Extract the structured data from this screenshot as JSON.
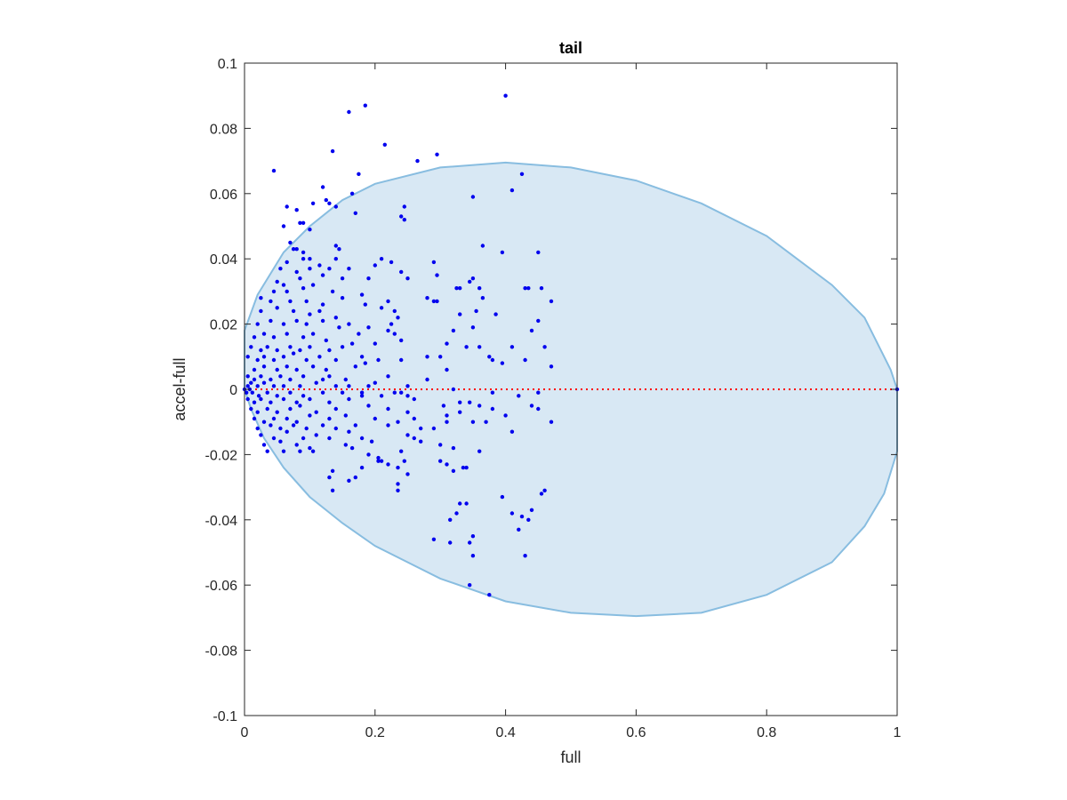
{
  "chart_data": {
    "type": "scatter",
    "title": "tail",
    "xlabel": "full",
    "ylabel": "accel-full",
    "xlim": [
      0,
      1
    ],
    "ylim": [
      -0.1,
      0.1
    ],
    "xticks": [
      0,
      0.2,
      0.4,
      0.6,
      0.8,
      1
    ],
    "xtick_labels": [
      "0",
      "0.2",
      "0.4",
      "0.6",
      "0.8",
      "1"
    ],
    "yticks": [
      -0.1,
      -0.08,
      -0.06,
      -0.04,
      -0.02,
      0,
      0.02,
      0.04,
      0.06,
      0.08,
      0.1
    ],
    "ytick_labels": [
      "-0.1",
      "-0.08",
      "-0.06",
      "-0.04",
      "-0.02",
      "0",
      "0.02",
      "0.04",
      "0.06",
      "0.08",
      "0.1"
    ],
    "grid": false,
    "colors": {
      "points": "#0000ee",
      "region_fill": "#d8e8f4",
      "region_edge": "#88bde0",
      "zero_line": "#ff0000",
      "axes": "#262626"
    },
    "region": {
      "shape": "ellipse",
      "top_path": [
        [
          0,
          0.018
        ],
        [
          0.02,
          0.029
        ],
        [
          0.06,
          0.042
        ],
        [
          0.1,
          0.05
        ],
        [
          0.15,
          0.058
        ],
        [
          0.2,
          0.063
        ],
        [
          0.3,
          0.068
        ],
        [
          0.4,
          0.0695
        ],
        [
          0.5,
          0.068
        ],
        [
          0.6,
          0.064
        ],
        [
          0.7,
          0.057
        ],
        [
          0.8,
          0.047
        ],
        [
          0.9,
          0.032
        ],
        [
          0.95,
          0.022
        ],
        [
          0.99,
          0.006
        ],
        [
          1.0,
          0.0
        ]
      ],
      "bottom_path": [
        [
          1.0,
          -0.019
        ],
        [
          0.98,
          -0.032
        ],
        [
          0.95,
          -0.042
        ],
        [
          0.9,
          -0.053
        ],
        [
          0.8,
          -0.063
        ],
        [
          0.7,
          -0.0685
        ],
        [
          0.6,
          -0.0695
        ],
        [
          0.5,
          -0.0685
        ],
        [
          0.4,
          -0.065
        ],
        [
          0.3,
          -0.058
        ],
        [
          0.2,
          -0.048
        ],
        [
          0.15,
          -0.041
        ],
        [
          0.1,
          -0.033
        ],
        [
          0.06,
          -0.024
        ],
        [
          0.03,
          -0.015
        ],
        [
          0.01,
          -0.006
        ],
        [
          0,
          0.0
        ]
      ]
    },
    "zero_line": {
      "y": 0,
      "x": [
        0,
        1
      ]
    },
    "points": [
      [
        0.4,
        0.09
      ],
      [
        0.185,
        0.087
      ],
      [
        0.16,
        0.085
      ],
      [
        0.215,
        0.075
      ],
      [
        0.295,
        0.072
      ],
      [
        0.265,
        0.07
      ],
      [
        0.135,
        0.073
      ],
      [
        0.045,
        0.067
      ],
      [
        0.175,
        0.066
      ],
      [
        0.425,
        0.066
      ],
      [
        0.12,
        0.062
      ],
      [
        0.41,
        0.061
      ],
      [
        0.165,
        0.06
      ],
      [
        0.35,
        0.059
      ],
      [
        0.125,
        0.058
      ],
      [
        0.105,
        0.057
      ],
      [
        0.13,
        0.057
      ],
      [
        0.065,
        0.056
      ],
      [
        0.14,
        0.056
      ],
      [
        0.08,
        0.055
      ],
      [
        0.245,
        0.056
      ],
      [
        0.24,
        0.053
      ],
      [
        0.245,
        0.052
      ],
      [
        0.17,
        0.054
      ],
      [
        0.09,
        0.051
      ],
      [
        0.085,
        0.051
      ],
      [
        0.06,
        0.05
      ],
      [
        0.1,
        0.049
      ],
      [
        0.07,
        0.045
      ],
      [
        0.075,
        0.043
      ],
      [
        0.08,
        0.043
      ],
      [
        0.09,
        0.042
      ],
      [
        0.09,
        0.04
      ],
      [
        0.14,
        0.044
      ],
      [
        0.145,
        0.043
      ],
      [
        0.365,
        0.044
      ],
      [
        0.395,
        0.042
      ],
      [
        0.45,
        0.042
      ],
      [
        0.065,
        0.039
      ],
      [
        0.1,
        0.04
      ],
      [
        0.115,
        0.038
      ],
      [
        0.14,
        0.04
      ],
      [
        0.055,
        0.037
      ],
      [
        0.08,
        0.036
      ],
      [
        0.1,
        0.037
      ],
      [
        0.13,
        0.037
      ],
      [
        0.16,
        0.037
      ],
      [
        0.2,
        0.038
      ],
      [
        0.21,
        0.04
      ],
      [
        0.225,
        0.039
      ],
      [
        0.29,
        0.039
      ],
      [
        0.05,
        0.033
      ],
      [
        0.06,
        0.032
      ],
      [
        0.085,
        0.034
      ],
      [
        0.12,
        0.035
      ],
      [
        0.15,
        0.034
      ],
      [
        0.045,
        0.03
      ],
      [
        0.065,
        0.03
      ],
      [
        0.09,
        0.031
      ],
      [
        0.105,
        0.032
      ],
      [
        0.135,
        0.03
      ],
      [
        0.19,
        0.034
      ],
      [
        0.24,
        0.036
      ],
      [
        0.25,
        0.034
      ],
      [
        0.295,
        0.035
      ],
      [
        0.345,
        0.033
      ],
      [
        0.35,
        0.034
      ],
      [
        0.025,
        0.028
      ],
      [
        0.04,
        0.027
      ],
      [
        0.07,
        0.027
      ],
      [
        0.095,
        0.027
      ],
      [
        0.12,
        0.026
      ],
      [
        0.15,
        0.028
      ],
      [
        0.18,
        0.029
      ],
      [
        0.22,
        0.027
      ],
      [
        0.325,
        0.031
      ],
      [
        0.33,
        0.031
      ],
      [
        0.36,
        0.031
      ],
      [
        0.43,
        0.031
      ],
      [
        0.435,
        0.031
      ],
      [
        0.455,
        0.031
      ],
      [
        0.025,
        0.024
      ],
      [
        0.05,
        0.025
      ],
      [
        0.075,
        0.024
      ],
      [
        0.1,
        0.023
      ],
      [
        0.115,
        0.024
      ],
      [
        0.14,
        0.022
      ],
      [
        0.185,
        0.026
      ],
      [
        0.21,
        0.025
      ],
      [
        0.23,
        0.024
      ],
      [
        0.28,
        0.028
      ],
      [
        0.29,
        0.027
      ],
      [
        0.295,
        0.027
      ],
      [
        0.365,
        0.028
      ],
      [
        0.47,
        0.027
      ],
      [
        0.02,
        0.02
      ],
      [
        0.04,
        0.021
      ],
      [
        0.06,
        0.02
      ],
      [
        0.08,
        0.021
      ],
      [
        0.095,
        0.02
      ],
      [
        0.12,
        0.021
      ],
      [
        0.145,
        0.019
      ],
      [
        0.16,
        0.02
      ],
      [
        0.19,
        0.019
      ],
      [
        0.225,
        0.02
      ],
      [
        0.235,
        0.022
      ],
      [
        0.33,
        0.023
      ],
      [
        0.355,
        0.024
      ],
      [
        0.385,
        0.023
      ],
      [
        0.45,
        0.021
      ],
      [
        0.015,
        0.016
      ],
      [
        0.03,
        0.017
      ],
      [
        0.045,
        0.016
      ],
      [
        0.065,
        0.017
      ],
      [
        0.09,
        0.016
      ],
      [
        0.105,
        0.017
      ],
      [
        0.125,
        0.015
      ],
      [
        0.175,
        0.017
      ],
      [
        0.22,
        0.018
      ],
      [
        0.23,
        0.017
      ],
      [
        0.32,
        0.018
      ],
      [
        0.35,
        0.019
      ],
      [
        0.44,
        0.018
      ],
      [
        0.01,
        0.013
      ],
      [
        0.025,
        0.012
      ],
      [
        0.035,
        0.013
      ],
      [
        0.05,
        0.012
      ],
      [
        0.07,
        0.013
      ],
      [
        0.085,
        0.012
      ],
      [
        0.1,
        0.013
      ],
      [
        0.13,
        0.012
      ],
      [
        0.15,
        0.013
      ],
      [
        0.165,
        0.014
      ],
      [
        0.2,
        0.014
      ],
      [
        0.24,
        0.015
      ],
      [
        0.31,
        0.014
      ],
      [
        0.34,
        0.013
      ],
      [
        0.36,
        0.013
      ],
      [
        0.41,
        0.013
      ],
      [
        0.46,
        0.013
      ],
      [
        0.005,
        0.01
      ],
      [
        0.02,
        0.009
      ],
      [
        0.03,
        0.01
      ],
      [
        0.045,
        0.009
      ],
      [
        0.06,
        0.01
      ],
      [
        0.075,
        0.011
      ],
      [
        0.095,
        0.009
      ],
      [
        0.115,
        0.01
      ],
      [
        0.14,
        0.009
      ],
      [
        0.18,
        0.01
      ],
      [
        0.205,
        0.009
      ],
      [
        0.28,
        0.01
      ],
      [
        0.3,
        0.01
      ],
      [
        0.375,
        0.01
      ],
      [
        0.38,
        0.009
      ],
      [
        0.015,
        0.006
      ],
      [
        0.03,
        0.007
      ],
      [
        0.05,
        0.006
      ],
      [
        0.065,
        0.007
      ],
      [
        0.08,
        0.006
      ],
      [
        0.105,
        0.007
      ],
      [
        0.125,
        0.006
      ],
      [
        0.17,
        0.007
      ],
      [
        0.185,
        0.008
      ],
      [
        0.24,
        0.009
      ],
      [
        0.31,
        0.006
      ],
      [
        0.395,
        0.008
      ],
      [
        0.43,
        0.009
      ],
      [
        0.47,
        0.007
      ],
      [
        0.005,
        0.004
      ],
      [
        0.015,
        0.003
      ],
      [
        0.025,
        0.004
      ],
      [
        0.04,
        0.003
      ],
      [
        0.055,
        0.004
      ],
      [
        0.07,
        0.003
      ],
      [
        0.09,
        0.004
      ],
      [
        0.12,
        0.003
      ],
      [
        0.13,
        0.004
      ],
      [
        0.155,
        0.003
      ],
      [
        0.22,
        0.004
      ],
      [
        0.28,
        0.003
      ],
      [
        0.005,
        0.001
      ],
      [
        0.01,
        0.002
      ],
      [
        0.02,
        0.001
      ],
      [
        0.03,
        0.002
      ],
      [
        0.045,
        0.001
      ],
      [
        0.06,
        0.001
      ],
      [
        0.085,
        0.001
      ],
      [
        0.11,
        0.002
      ],
      [
        0.14,
        0.001
      ],
      [
        0.16,
        0.001
      ],
      [
        0.19,
        0.001
      ],
      [
        0.2,
        0.002
      ],
      [
        0.25,
        0.001
      ],
      [
        0.0,
        0.0
      ],
      [
        0.003,
        -0.001
      ],
      [
        0.008,
        0.0
      ],
      [
        0.012,
        -0.001
      ],
      [
        0.022,
        -0.002
      ],
      [
        0.035,
        -0.001
      ],
      [
        0.05,
        -0.002
      ],
      [
        0.07,
        -0.001
      ],
      [
        0.09,
        -0.002
      ],
      [
        0.12,
        -0.001
      ],
      [
        0.15,
        -0.001
      ],
      [
        0.18,
        -0.001
      ],
      [
        0.21,
        -0.002
      ],
      [
        0.23,
        -0.001
      ],
      [
        0.24,
        -0.001
      ],
      [
        0.32,
        0.0
      ],
      [
        0.38,
        -0.001
      ],
      [
        1.0,
        0.0
      ],
      [
        0.005,
        -0.003
      ],
      [
        0.015,
        -0.004
      ],
      [
        0.025,
        -0.003
      ],
      [
        0.04,
        -0.004
      ],
      [
        0.06,
        -0.003
      ],
      [
        0.08,
        -0.004
      ],
      [
        0.1,
        -0.003
      ],
      [
        0.13,
        -0.004
      ],
      [
        0.16,
        -0.003
      ],
      [
        0.18,
        -0.002
      ],
      [
        0.25,
        -0.002
      ],
      [
        0.26,
        -0.003
      ],
      [
        0.345,
        -0.004
      ],
      [
        0.42,
        -0.002
      ],
      [
        0.45,
        -0.001
      ],
      [
        0.01,
        -0.006
      ],
      [
        0.02,
        -0.007
      ],
      [
        0.035,
        -0.006
      ],
      [
        0.05,
        -0.007
      ],
      [
        0.07,
        -0.006
      ],
      [
        0.085,
        -0.005
      ],
      [
        0.11,
        -0.007
      ],
      [
        0.14,
        -0.006
      ],
      [
        0.19,
        -0.005
      ],
      [
        0.22,
        -0.006
      ],
      [
        0.25,
        -0.007
      ],
      [
        0.305,
        -0.005
      ],
      [
        0.33,
        -0.004
      ],
      [
        0.36,
        -0.005
      ],
      [
        0.38,
        -0.006
      ],
      [
        0.44,
        -0.005
      ],
      [
        0.015,
        -0.009
      ],
      [
        0.03,
        -0.01
      ],
      [
        0.045,
        -0.009
      ],
      [
        0.065,
        -0.009
      ],
      [
        0.08,
        -0.01
      ],
      [
        0.1,
        -0.008
      ],
      [
        0.13,
        -0.009
      ],
      [
        0.155,
        -0.008
      ],
      [
        0.2,
        -0.009
      ],
      [
        0.235,
        -0.01
      ],
      [
        0.26,
        -0.009
      ],
      [
        0.31,
        -0.008
      ],
      [
        0.33,
        -0.007
      ],
      [
        0.4,
        -0.008
      ],
      [
        0.45,
        -0.006
      ],
      [
        0.02,
        -0.012
      ],
      [
        0.04,
        -0.011
      ],
      [
        0.055,
        -0.012
      ],
      [
        0.075,
        -0.011
      ],
      [
        0.095,
        -0.012
      ],
      [
        0.12,
        -0.011
      ],
      [
        0.14,
        -0.012
      ],
      [
        0.17,
        -0.011
      ],
      [
        0.22,
        -0.011
      ],
      [
        0.27,
        -0.012
      ],
      [
        0.31,
        -0.01
      ],
      [
        0.35,
        -0.01
      ],
      [
        0.37,
        -0.01
      ],
      [
        0.025,
        -0.014
      ],
      [
        0.045,
        -0.015
      ],
      [
        0.065,
        -0.013
      ],
      [
        0.09,
        -0.015
      ],
      [
        0.11,
        -0.014
      ],
      [
        0.13,
        -0.015
      ],
      [
        0.16,
        -0.013
      ],
      [
        0.25,
        -0.014
      ],
      [
        0.29,
        -0.012
      ],
      [
        0.41,
        -0.013
      ],
      [
        0.47,
        -0.01
      ],
      [
        0.03,
        -0.017
      ],
      [
        0.055,
        -0.016
      ],
      [
        0.08,
        -0.017
      ],
      [
        0.1,
        -0.018
      ],
      [
        0.155,
        -0.017
      ],
      [
        0.18,
        -0.015
      ],
      [
        0.195,
        -0.016
      ],
      [
        0.26,
        -0.015
      ],
      [
        0.27,
        -0.016
      ],
      [
        0.3,
        -0.017
      ],
      [
        0.32,
        -0.018
      ],
      [
        0.035,
        -0.019
      ],
      [
        0.06,
        -0.019
      ],
      [
        0.085,
        -0.019
      ],
      [
        0.105,
        -0.019
      ],
      [
        0.165,
        -0.018
      ],
      [
        0.19,
        -0.02
      ],
      [
        0.205,
        -0.021
      ],
      [
        0.24,
        -0.019
      ],
      [
        0.36,
        -0.019
      ],
      [
        0.205,
        -0.022
      ],
      [
        0.21,
        -0.022
      ],
      [
        0.22,
        -0.023
      ],
      [
        0.245,
        -0.022
      ],
      [
        0.3,
        -0.022
      ],
      [
        0.31,
        -0.023
      ],
      [
        0.135,
        -0.025
      ],
      [
        0.18,
        -0.024
      ],
      [
        0.235,
        -0.024
      ],
      [
        0.25,
        -0.026
      ],
      [
        0.335,
        -0.024
      ],
      [
        0.34,
        -0.024
      ],
      [
        0.32,
        -0.025
      ],
      [
        0.13,
        -0.027
      ],
      [
        0.16,
        -0.028
      ],
      [
        0.17,
        -0.027
      ],
      [
        0.235,
        -0.029
      ],
      [
        0.135,
        -0.031
      ],
      [
        0.235,
        -0.031
      ],
      [
        0.46,
        -0.031
      ],
      [
        0.455,
        -0.032
      ],
      [
        0.33,
        -0.035
      ],
      [
        0.34,
        -0.035
      ],
      [
        0.395,
        -0.033
      ],
      [
        0.44,
        -0.037
      ],
      [
        0.315,
        -0.04
      ],
      [
        0.325,
        -0.038
      ],
      [
        0.41,
        -0.038
      ],
      [
        0.425,
        -0.039
      ],
      [
        0.435,
        -0.04
      ],
      [
        0.42,
        -0.043
      ],
      [
        0.29,
        -0.046
      ],
      [
        0.315,
        -0.047
      ],
      [
        0.35,
        -0.045
      ],
      [
        0.345,
        -0.047
      ],
      [
        0.35,
        -0.051
      ],
      [
        0.43,
        -0.051
      ],
      [
        0.345,
        -0.06
      ],
      [
        0.375,
        -0.063
      ]
    ]
  }
}
